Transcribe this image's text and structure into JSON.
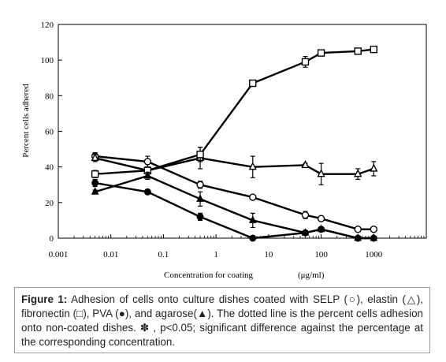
{
  "chart_data": {
    "type": "line",
    "title": "",
    "xlabel": "Concentration for coating",
    "xunit": "(μg/ml)",
    "ylabel": "Percent cells adhered",
    "xscale": "log",
    "xlim": [
      0.001,
      10000
    ],
    "ylim": [
      0,
      120
    ],
    "xticks": [
      "0.001",
      "0.01",
      "0.1",
      "1",
      "10",
      "100",
      "1000"
    ],
    "yticks": [
      "0",
      "20",
      "40",
      "60",
      "80",
      "100",
      "120"
    ],
    "grid": false,
    "legend": "none",
    "series": [
      {
        "marker": "open-circle",
        "x": [
          0.005,
          0.05,
          0.5,
          5,
          50,
          100,
          500,
          1000
        ],
        "y": [
          46,
          43,
          30,
          23,
          13,
          11,
          5,
          5
        ],
        "err": [
          2,
          3,
          2,
          1,
          2,
          1,
          1,
          1
        ]
      },
      {
        "marker": "open-triangle",
        "x": [
          0.005,
          0.05,
          0.5,
          5,
          50,
          100,
          500,
          1000
        ],
        "y": [
          45,
          38,
          45,
          40,
          41,
          36,
          36,
          39
        ],
        "err": [
          2,
          2,
          6,
          6,
          1,
          6,
          3,
          4
        ]
      },
      {
        "marker": "open-square",
        "x": [
          0.005,
          0.05,
          0.5,
          5,
          50,
          100,
          500,
          1000
        ],
        "y": [
          36,
          38,
          47,
          87,
          99,
          104,
          105,
          106
        ],
        "err": [
          2,
          2,
          4,
          1,
          3,
          1,
          1,
          1
        ]
      },
      {
        "marker": "filled-circle",
        "x": [
          0.005,
          0.05,
          0.5,
          5,
          50,
          100,
          500,
          1000
        ],
        "y": [
          31,
          26,
          12,
          0,
          3,
          5,
          0,
          0
        ],
        "err": [
          2,
          1,
          2,
          0,
          1,
          1,
          0,
          0
        ]
      },
      {
        "marker": "filled-triangle",
        "x": [
          0.005,
          0.05,
          0.5,
          5,
          50,
          100,
          500,
          1000
        ],
        "y": [
          26,
          35,
          22,
          10,
          3,
          5,
          0,
          0
        ],
        "err": [
          1,
          2,
          4,
          4,
          1,
          1,
          0,
          0
        ]
      }
    ]
  },
  "caption": {
    "label": "Figure 1:",
    "text": "Adhesion of cells onto culture dishes coated with SELP (○), elastin (△), fibronectin (□), PVA (●), and agarose(▲). The dotted line is the percent cells adhesion onto non-coated dishes. ✽ , p<0.05; significant difference against the percentage at the corresponding concentration."
  }
}
